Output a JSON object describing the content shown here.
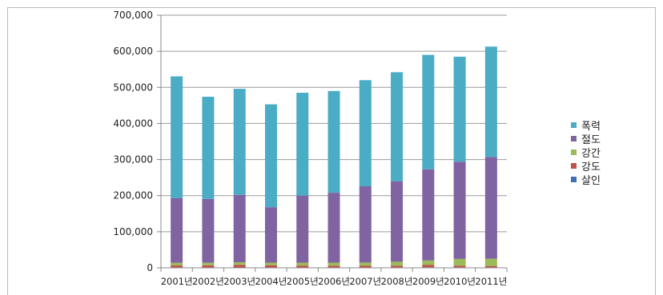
{
  "chart_data": {
    "type": "bar",
    "stacked": true,
    "categories": [
      "2001년",
      "2002년",
      "2003년",
      "2004년",
      "2005년",
      "2006년",
      "2007년",
      "2008년",
      "2009년",
      "2010년",
      "2011년"
    ],
    "ylim": [
      0,
      700000
    ],
    "yticks": [
      "0",
      "100,000",
      "200,000",
      "300,000",
      "400,000",
      "500,000",
      "600,000",
      "700,000"
    ],
    "grid": "horizontal",
    "legend_position": "right",
    "series": [
      {
        "name": "살인",
        "color": "#3f6fb5",
        "values": [
          1000,
          1000,
          1000,
          1000,
          1100,
          1100,
          1100,
          1100,
          1400,
          1300,
          1200
        ]
      },
      {
        "name": "강도",
        "color": "#c0504d",
        "values": [
          5500,
          6000,
          7300,
          5800,
          5200,
          4800,
          4500,
          4800,
          6400,
          4400,
          4000
        ]
      },
      {
        "name": "강간",
        "color": "#9bbb59",
        "values": [
          7500,
          7000,
          7000,
          7500,
          8000,
          8500,
          9000,
          11000,
          12500,
          19000,
          20000
        ]
      },
      {
        "name": "절도",
        "color": "#8064a2",
        "values": [
          179500,
          177000,
          187000,
          153700,
          185700,
          193600,
          211400,
          223100,
          252700,
          269300,
          281800
        ]
      },
      {
        "name": "폭력",
        "color": "#4bacc6",
        "values": [
          337000,
          283000,
          293700,
          285000,
          285000,
          282000,
          294000,
          302000,
          317000,
          291000,
          306000
        ]
      }
    ],
    "legend_order": [
      "폭력",
      "절도",
      "강간",
      "강도",
      "살인"
    ]
  }
}
